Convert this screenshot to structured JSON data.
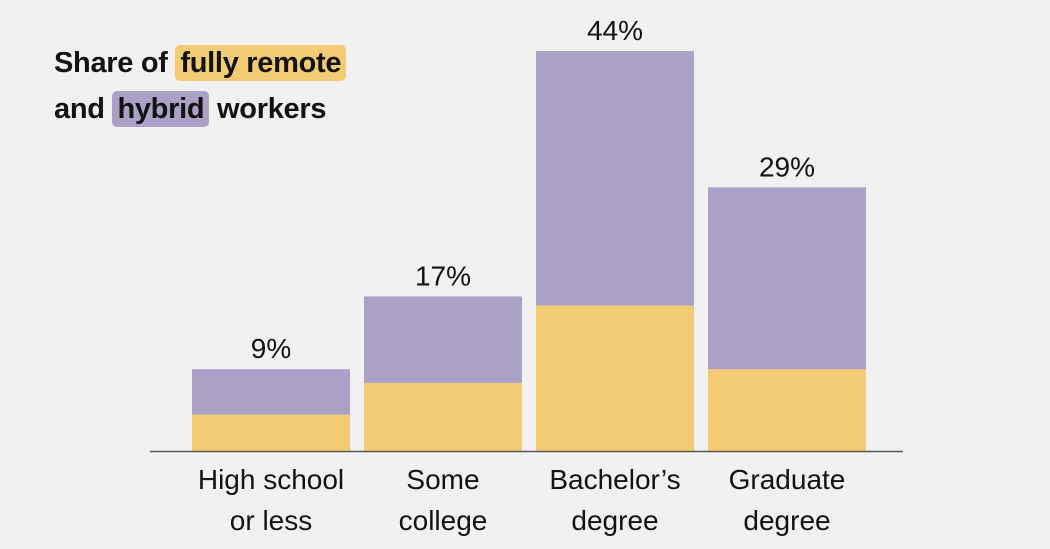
{
  "title": {
    "prefix": "Share of",
    "remote_highlight": "fully remote",
    "line2_prefix": "and",
    "hybrid_highlight": "hybrid",
    "suffix": "workers"
  },
  "colors": {
    "background": "#f1f1f1",
    "fully_remote": "#f3cb73",
    "hybrid": "#aba0c5",
    "axis": "#555555",
    "text": "#121212"
  },
  "chart_data": {
    "type": "bar",
    "stacked": true,
    "title": "Share of fully remote and hybrid workers",
    "categories": [
      [
        "High school",
        "or less"
      ],
      [
        "Some",
        "college"
      ],
      [
        "Bachelor’s",
        "degree"
      ],
      [
        "Graduate",
        "degree"
      ]
    ],
    "series": [
      {
        "name": "fully remote",
        "values": [
          4,
          7.5,
          16,
          9
        ]
      },
      {
        "name": "hybrid",
        "values": [
          5,
          9.5,
          28,
          20
        ]
      }
    ],
    "totals": [
      9,
      17,
      44,
      29
    ],
    "total_labels": [
      "9%",
      "17%",
      "44%",
      "29%"
    ],
    "ylim": [
      0,
      44
    ],
    "grid": false,
    "legend": "title"
  }
}
